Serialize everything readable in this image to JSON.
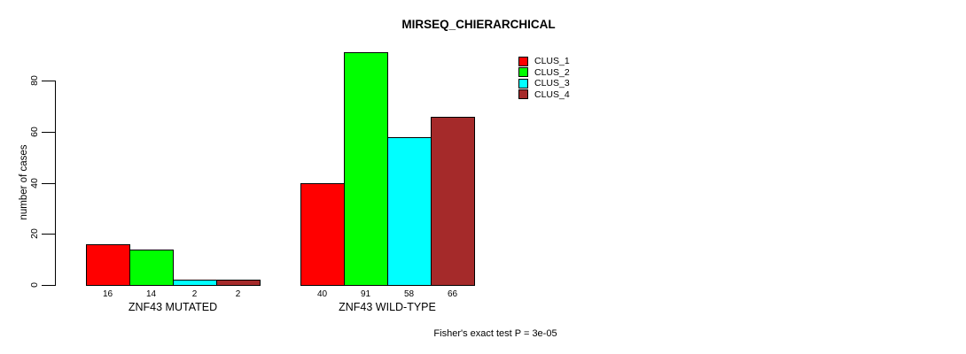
{
  "chart_data": {
    "type": "bar",
    "title": "MIRSEQ_CHIERARCHICAL",
    "ylabel": "number of cases",
    "xlabel": "",
    "ylim": [
      0,
      91
    ],
    "yticks": [
      0,
      20,
      40,
      60,
      80
    ],
    "categories": [
      "ZNF43 MUTATED",
      "ZNF43 WILD-TYPE"
    ],
    "series": [
      {
        "name": "CLUS_1",
        "color": "#ff0000",
        "values": [
          16,
          40
        ]
      },
      {
        "name": "CLUS_2",
        "color": "#00ff00",
        "values": [
          14,
          91
        ]
      },
      {
        "name": "CLUS_3",
        "color": "#00ffff",
        "values": [
          2,
          58
        ]
      },
      {
        "name": "CLUS_4",
        "color": "#a52a2a",
        "values": [
          2,
          66
        ]
      }
    ],
    "bar_value_labels": [
      [
        16,
        14,
        2,
        2
      ],
      [
        40,
        91,
        58,
        66
      ]
    ],
    "legend": {
      "position": "top-right",
      "entries": [
        "CLUS_1",
        "CLUS_2",
        "CLUS_3",
        "CLUS_4"
      ]
    },
    "annotation": "Fisher's exact test P = 3e-05",
    "grid": false,
    "colors": {
      "axis": "#000000",
      "text": "#000000",
      "background": "#ffffff"
    }
  }
}
